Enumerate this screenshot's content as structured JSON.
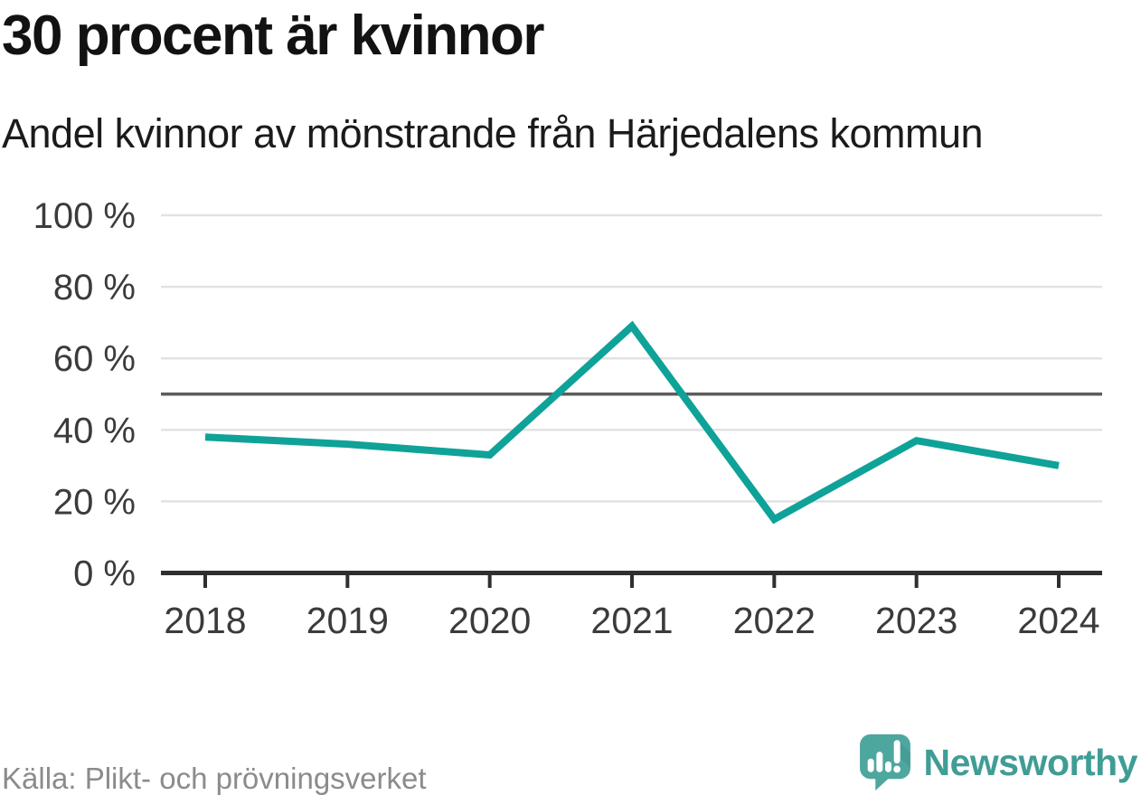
{
  "header": {
    "title": "30 procent är kvinnor",
    "subtitle": "Andel kvinnor av mönstrande från Härjedalens kommun"
  },
  "chart_data": {
    "type": "line",
    "title": "30 procent är kvinnor",
    "subtitle": "Andel kvinnor av mönstrande från Härjedalens kommun",
    "x": [
      "2018",
      "2019",
      "2020",
      "2021",
      "2022",
      "2023",
      "2024"
    ],
    "values": [
      38,
      36,
      33,
      69,
      15,
      37,
      30
    ],
    "series_name": "Andel kvinnor av mönstrande",
    "xlabel": "",
    "ylabel": "",
    "ylim": [
      0,
      100
    ],
    "yticks": [
      0,
      20,
      40,
      60,
      80,
      100
    ],
    "ytick_labels": [
      "0 %",
      "20 %",
      "40 %",
      "60 %",
      "80 %",
      "100 %"
    ],
    "reference_line": 50,
    "grid": true,
    "legend": false
  },
  "footer": {
    "source": "Källa: Plikt- och prövningsverket",
    "brand": "Newsworthy"
  },
  "colors": {
    "line": "#0fa298",
    "grid": "#e2e2e2",
    "reference": "#5c5c5c",
    "axis": "#2f2f2f",
    "tick_label": "#3b3b3b",
    "title": "#121212",
    "subtitle": "#1b1b1b",
    "source": "#8b8b8b",
    "brand_text": "#3f9d95",
    "logo_bg": "#4ea79f",
    "logo_fold": "#3e968e"
  }
}
